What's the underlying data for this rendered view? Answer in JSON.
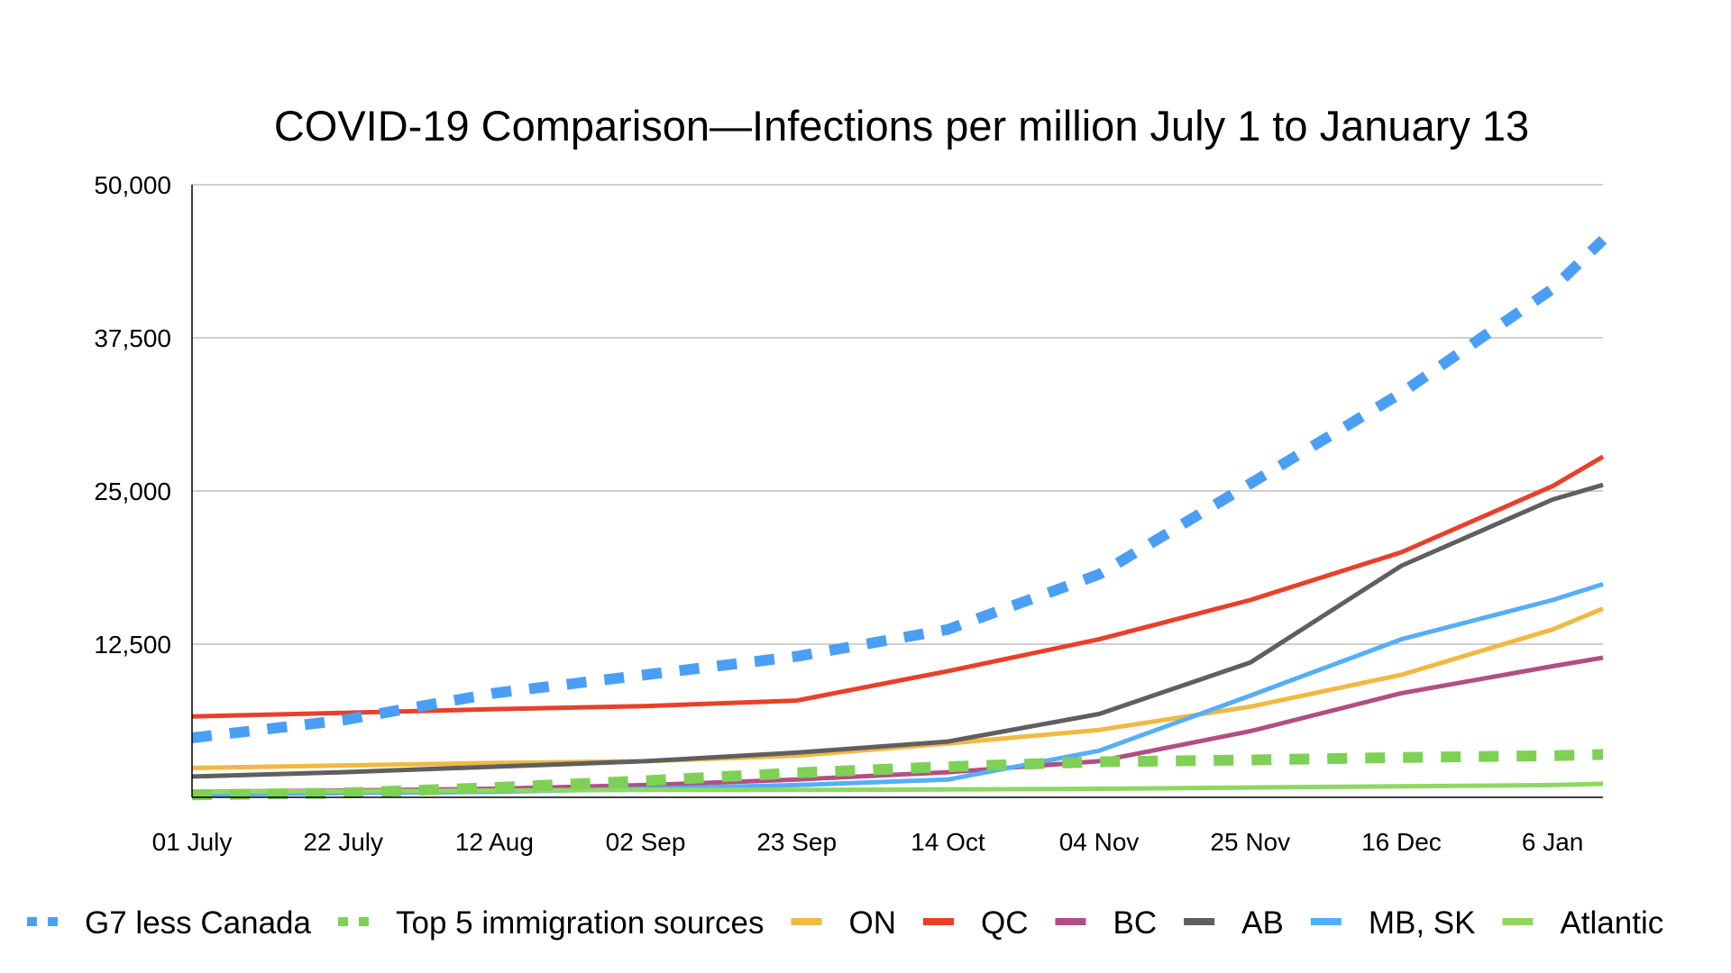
{
  "chart_data": {
    "type": "line",
    "title": "COVID-19 Comparison—Infections per million July 1 to January 13",
    "xlabel": "",
    "ylabel": "",
    "ylim": [
      0,
      50000
    ],
    "yticks": [
      0,
      12500,
      25000,
      37500,
      50000
    ],
    "ytick_labels": [
      "",
      "12,500",
      "25,000",
      "37,500",
      "50,000"
    ],
    "x_days": [
      0,
      21,
      42,
      63,
      84,
      105,
      126,
      147,
      168,
      189,
      196
    ],
    "xlim_days": [
      0,
      196
    ],
    "xtick_days": [
      0,
      21,
      42,
      63,
      84,
      105,
      126,
      147,
      168,
      189
    ],
    "categories": [
      "01 July",
      "22 July",
      "12 Aug",
      "02 Sep",
      "23 Sep",
      "14 Oct",
      "04 Nov",
      "25 Nov",
      "16 Dec",
      "6 Jan"
    ],
    "grid": "horizontal",
    "legend_position": "bottom",
    "series": [
      {
        "name": "G7 less Canada",
        "color": "#4a9ff5",
        "style": "dashed-thick",
        "values": [
          4850,
          6300,
          8500,
          10000,
          11500,
          13700,
          18200,
          25600,
          33000,
          41500,
          45500
        ]
      },
      {
        "name": "Top 5 immigration sources",
        "color": "#7ed154",
        "style": "dashed-thick",
        "values": [
          200,
          350,
          800,
          1350,
          2000,
          2500,
          2900,
          3050,
          3250,
          3400,
          3500
        ]
      },
      {
        "name": "ON",
        "color": "#f0b942",
        "style": "solid",
        "values": [
          2400,
          2600,
          2800,
          2950,
          3400,
          4400,
          5500,
          7400,
          10000,
          13700,
          15400
        ]
      },
      {
        "name": "QC",
        "color": "#e8402a",
        "style": "solid",
        "values": [
          6600,
          6900,
          7200,
          7450,
          7900,
          10300,
          12900,
          16100,
          20000,
          25400,
          27800
        ]
      },
      {
        "name": "BC",
        "color": "#b14f85",
        "style": "solid",
        "values": [
          450,
          550,
          700,
          1000,
          1450,
          2050,
          2950,
          5400,
          8500,
          10700,
          11400
        ]
      },
      {
        "name": "AB",
        "color": "#5f5f5f",
        "style": "solid",
        "values": [
          1700,
          2050,
          2500,
          2950,
          3650,
          4550,
          6800,
          11000,
          18900,
          24300,
          25500
        ]
      },
      {
        "name": "MB, SK",
        "color": "#56aef7",
        "style": "solid",
        "values": [
          200,
          350,
          450,
          700,
          1000,
          1450,
          3800,
          8300,
          12900,
          16100,
          17400
        ]
      },
      {
        "name": "Atlantic",
        "color": "#8ed861",
        "style": "solid",
        "values": [
          450,
          500,
          550,
          600,
          600,
          650,
          700,
          800,
          900,
          1000,
          1100
        ]
      }
    ]
  }
}
